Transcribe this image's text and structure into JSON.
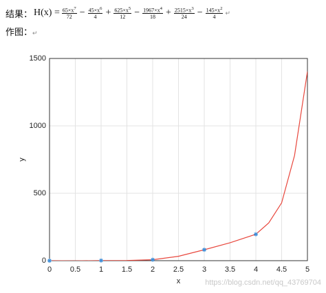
{
  "document": {
    "result_label": "结果：",
    "function_name": "H(x) =",
    "terms": [
      {
        "numerator": "65×x",
        "exponent": "7",
        "denominator": "72"
      },
      {
        "sign": "−",
        "numerator": "45×x",
        "exponent": "6",
        "denominator": "4"
      },
      {
        "sign": "+",
        "numerator": "625×x",
        "exponent": "5",
        "denominator": "12"
      },
      {
        "sign": "−",
        "numerator": "1967×x",
        "exponent": "4",
        "denominator": "18"
      },
      {
        "sign": "+",
        "numerator": "2515×x",
        "exponent": "3",
        "denominator": "24"
      },
      {
        "sign": "−",
        "numerator": "145×x",
        "exponent": "2",
        "denominator": "4"
      }
    ],
    "paragraph_mark": "↵",
    "plot_label": "作图：",
    "watermark": "https://blog.csdn.net/qq_43769704"
  },
  "chart_data": {
    "type": "line",
    "xlabel": "x",
    "ylabel": "y",
    "xlim": [
      0,
      5
    ],
    "ylim": [
      0,
      1500
    ],
    "xticks": [
      0,
      0.5,
      1,
      1.5,
      2,
      2.5,
      3,
      3.5,
      4,
      4.5,
      5
    ],
    "yticks": [
      0,
      500,
      1000,
      1500
    ],
    "grid": true,
    "series": [
      {
        "kind": "line",
        "color": "#e8463c",
        "x": [
          0,
          0.5,
          1,
          1.5,
          2,
          2.5,
          3,
          3.5,
          4,
          4.25,
          4.5,
          4.75,
          5
        ],
        "values": [
          0,
          -1.3,
          1,
          1.7,
          7.1,
          32.6,
          81,
          132.8,
          196,
          280,
          429,
          780,
          1403
        ]
      },
      {
        "kind": "markers",
        "color": "#3f8fd8",
        "x": [
          0,
          1,
          2,
          3,
          4
        ],
        "values": [
          0,
          1,
          7,
          81,
          196
        ]
      }
    ]
  }
}
